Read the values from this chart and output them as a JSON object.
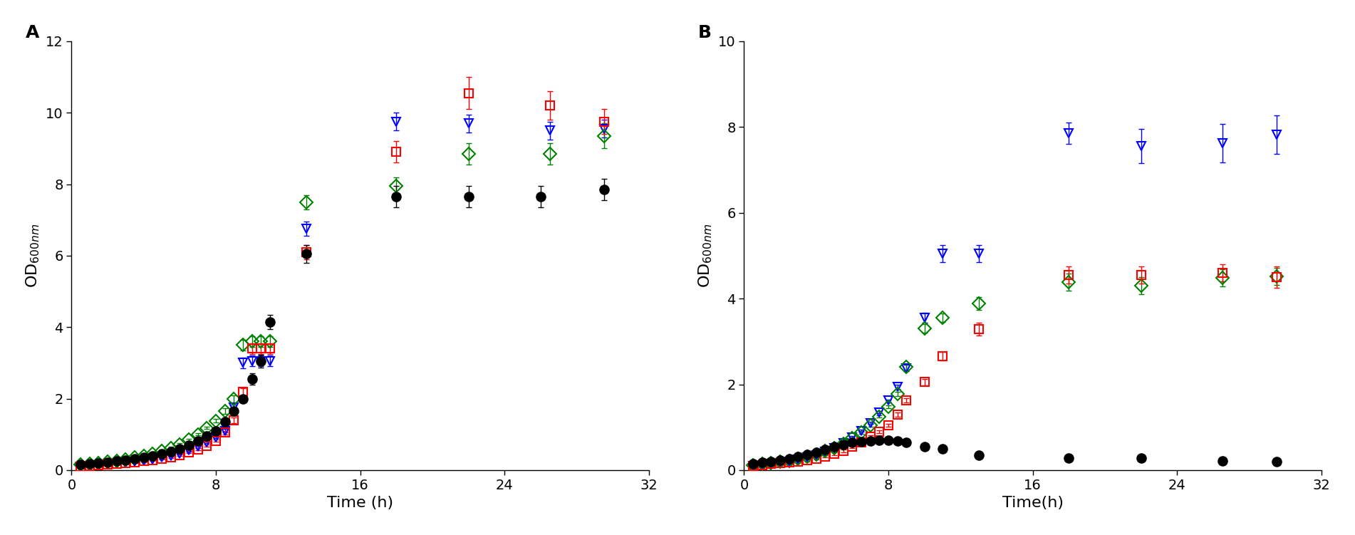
{
  "panel_A": {
    "black_circle": {
      "x": [
        0.5,
        1.0,
        1.5,
        2.0,
        2.5,
        3.0,
        3.5,
        4.0,
        4.5,
        5.0,
        5.5,
        6.0,
        6.5,
        7.0,
        7.5,
        8.0,
        8.5,
        9.0,
        9.5,
        10.0,
        10.5,
        11.0,
        13.0,
        18.0,
        22.0,
        26.0,
        29.5
      ],
      "y": [
        0.15,
        0.18,
        0.2,
        0.22,
        0.25,
        0.28,
        0.32,
        0.36,
        0.4,
        0.46,
        0.52,
        0.6,
        0.7,
        0.82,
        0.95,
        1.1,
        1.35,
        1.65,
        2.0,
        2.55,
        3.05,
        4.15,
        6.05,
        7.65,
        7.65,
        7.65,
        7.85
      ],
      "yerr": [
        0.03,
        0.03,
        0.03,
        0.03,
        0.03,
        0.03,
        0.03,
        0.03,
        0.03,
        0.03,
        0.03,
        0.03,
        0.03,
        0.03,
        0.03,
        0.05,
        0.05,
        0.08,
        0.1,
        0.15,
        0.18,
        0.2,
        0.25,
        0.3,
        0.3,
        0.3,
        0.3
      ]
    },
    "red_square": {
      "x": [
        0.5,
        1.0,
        1.5,
        2.0,
        2.5,
        3.0,
        3.5,
        4.0,
        4.5,
        5.0,
        5.5,
        6.0,
        6.5,
        7.0,
        7.5,
        8.0,
        8.5,
        9.0,
        9.5,
        10.0,
        10.5,
        11.0,
        13.0,
        18.0,
        22.0,
        26.5,
        29.5
      ],
      "y": [
        0.1,
        0.12,
        0.14,
        0.16,
        0.18,
        0.2,
        0.22,
        0.25,
        0.28,
        0.32,
        0.36,
        0.42,
        0.5,
        0.58,
        0.68,
        0.82,
        1.05,
        1.4,
        2.2,
        3.4,
        3.4,
        3.4,
        6.1,
        8.9,
        10.55,
        10.2,
        9.75
      ],
      "yerr": [
        0.03,
        0.03,
        0.03,
        0.03,
        0.03,
        0.03,
        0.03,
        0.03,
        0.03,
        0.03,
        0.03,
        0.03,
        0.03,
        0.03,
        0.03,
        0.03,
        0.05,
        0.08,
        0.1,
        0.15,
        0.15,
        0.15,
        0.2,
        0.3,
        0.45,
        0.4,
        0.35
      ]
    },
    "green_diamond": {
      "x": [
        0.5,
        1.0,
        1.5,
        2.0,
        2.5,
        3.0,
        3.5,
        4.0,
        4.5,
        5.0,
        5.5,
        6.0,
        6.5,
        7.0,
        7.5,
        8.0,
        8.5,
        9.0,
        9.5,
        10.0,
        10.5,
        11.0,
        13.0,
        18.0,
        22.0,
        26.5,
        29.5
      ],
      "y": [
        0.15,
        0.17,
        0.2,
        0.23,
        0.26,
        0.3,
        0.35,
        0.4,
        0.46,
        0.54,
        0.62,
        0.72,
        0.85,
        1.0,
        1.18,
        1.38,
        1.65,
        2.0,
        3.5,
        3.6,
        3.6,
        3.6,
        7.5,
        7.95,
        8.85,
        8.85,
        9.35
      ],
      "yerr": [
        0.03,
        0.03,
        0.03,
        0.03,
        0.03,
        0.03,
        0.03,
        0.03,
        0.03,
        0.03,
        0.03,
        0.03,
        0.03,
        0.03,
        0.03,
        0.05,
        0.08,
        0.1,
        0.15,
        0.15,
        0.15,
        0.15,
        0.2,
        0.25,
        0.3,
        0.3,
        0.35
      ]
    },
    "blue_triangle": {
      "x": [
        0.5,
        1.0,
        1.5,
        2.0,
        2.5,
        3.0,
        3.5,
        4.0,
        4.5,
        5.0,
        5.5,
        6.0,
        6.5,
        7.0,
        7.5,
        8.0,
        8.5,
        9.0,
        9.5,
        10.0,
        10.5,
        11.0,
        13.0,
        18.0,
        22.0,
        26.5,
        29.5
      ],
      "y": [
        0.1,
        0.12,
        0.14,
        0.16,
        0.18,
        0.2,
        0.23,
        0.26,
        0.3,
        0.35,
        0.4,
        0.46,
        0.55,
        0.65,
        0.78,
        0.92,
        1.1,
        1.75,
        3.0,
        3.05,
        3.05,
        3.05,
        6.75,
        9.75,
        9.7,
        9.5,
        9.55
      ],
      "yerr": [
        0.03,
        0.03,
        0.03,
        0.03,
        0.03,
        0.03,
        0.03,
        0.03,
        0.03,
        0.03,
        0.03,
        0.03,
        0.03,
        0.03,
        0.03,
        0.03,
        0.05,
        0.08,
        0.15,
        0.15,
        0.15,
        0.15,
        0.2,
        0.25,
        0.25,
        0.25,
        0.25
      ]
    }
  },
  "panel_B": {
    "black_circle": {
      "x": [
        0.5,
        1.0,
        1.5,
        2.0,
        2.5,
        3.0,
        3.5,
        4.0,
        4.5,
        5.0,
        5.5,
        6.0,
        6.5,
        7.0,
        7.5,
        8.0,
        8.5,
        9.0,
        10.0,
        11.0,
        13.0,
        18.0,
        22.0,
        26.5,
        29.5
      ],
      "y": [
        0.15,
        0.18,
        0.2,
        0.23,
        0.27,
        0.31,
        0.36,
        0.42,
        0.48,
        0.55,
        0.6,
        0.64,
        0.67,
        0.68,
        0.7,
        0.7,
        0.68,
        0.65,
        0.55,
        0.5,
        0.35,
        0.28,
        0.28,
        0.22,
        0.2
      ],
      "yerr": [
        0.03,
        0.03,
        0.03,
        0.03,
        0.03,
        0.03,
        0.03,
        0.03,
        0.03,
        0.03,
        0.03,
        0.03,
        0.03,
        0.03,
        0.03,
        0.03,
        0.03,
        0.03,
        0.03,
        0.03,
        0.03,
        0.03,
        0.03,
        0.03,
        0.03
      ]
    },
    "red_square": {
      "x": [
        0.5,
        1.0,
        1.5,
        2.0,
        2.5,
        3.0,
        3.5,
        4.0,
        4.5,
        5.0,
        5.5,
        6.0,
        6.5,
        7.0,
        7.5,
        8.0,
        8.5,
        9.0,
        10.0,
        11.0,
        13.0,
        18.0,
        22.0,
        26.5,
        29.5
      ],
      "y": [
        0.1,
        0.12,
        0.14,
        0.16,
        0.18,
        0.2,
        0.23,
        0.27,
        0.32,
        0.38,
        0.45,
        0.55,
        0.65,
        0.78,
        0.9,
        1.05,
        1.3,
        1.62,
        2.05,
        2.65,
        3.28,
        4.55,
        4.55,
        4.6,
        4.5
      ],
      "yerr": [
        0.03,
        0.03,
        0.03,
        0.03,
        0.03,
        0.03,
        0.03,
        0.03,
        0.03,
        0.03,
        0.03,
        0.03,
        0.03,
        0.03,
        0.03,
        0.03,
        0.05,
        0.05,
        0.08,
        0.1,
        0.15,
        0.2,
        0.2,
        0.2,
        0.25
      ]
    },
    "green_diamond": {
      "x": [
        0.5,
        1.0,
        1.5,
        2.0,
        2.5,
        3.0,
        3.5,
        4.0,
        4.5,
        5.0,
        5.5,
        6.0,
        6.5,
        7.0,
        7.5,
        8.0,
        8.5,
        9.0,
        10.0,
        11.0,
        13.0,
        18.0,
        22.0,
        26.5,
        29.5
      ],
      "y": [
        0.12,
        0.14,
        0.16,
        0.19,
        0.22,
        0.26,
        0.31,
        0.37,
        0.44,
        0.52,
        0.62,
        0.74,
        0.88,
        1.05,
        1.25,
        1.48,
        1.78,
        2.4,
        3.3,
        3.55,
        3.88,
        4.38,
        4.3,
        4.48,
        4.52
      ],
      "yerr": [
        0.03,
        0.03,
        0.03,
        0.03,
        0.03,
        0.03,
        0.03,
        0.03,
        0.03,
        0.03,
        0.03,
        0.03,
        0.03,
        0.03,
        0.03,
        0.03,
        0.05,
        0.08,
        0.1,
        0.1,
        0.15,
        0.2,
        0.2,
        0.2,
        0.2
      ]
    },
    "blue_triangle": {
      "x": [
        0.5,
        1.0,
        1.5,
        2.0,
        2.5,
        3.0,
        3.5,
        4.0,
        4.5,
        5.0,
        5.5,
        6.0,
        6.5,
        7.0,
        7.5,
        8.0,
        8.5,
        9.0,
        10.0,
        11.0,
        13.0,
        18.0,
        22.0,
        26.5,
        29.5
      ],
      "y": [
        0.1,
        0.12,
        0.14,
        0.17,
        0.2,
        0.24,
        0.29,
        0.35,
        0.43,
        0.52,
        0.63,
        0.76,
        0.92,
        1.1,
        1.35,
        1.62,
        1.95,
        2.38,
        3.55,
        5.05,
        5.05,
        7.85,
        7.55,
        7.62,
        7.82
      ],
      "yerr": [
        0.03,
        0.03,
        0.03,
        0.03,
        0.03,
        0.03,
        0.03,
        0.03,
        0.03,
        0.03,
        0.03,
        0.03,
        0.03,
        0.03,
        0.03,
        0.03,
        0.05,
        0.08,
        0.12,
        0.2,
        0.2,
        0.25,
        0.4,
        0.45,
        0.45
      ]
    }
  },
  "colors": {
    "black": "#000000",
    "red": "#FF0000",
    "green": "#008000",
    "blue": "#0000FF"
  },
  "panel_A_ylim": [
    0,
    12
  ],
  "panel_B_ylim": [
    0,
    10
  ],
  "xlim": [
    0,
    32
  ],
  "xticks": [
    0,
    8,
    16,
    24,
    32
  ],
  "panel_A_yticks": [
    0,
    2,
    4,
    6,
    8,
    10,
    12
  ],
  "panel_B_yticks": [
    0,
    2,
    4,
    6,
    8,
    10
  ],
  "xlabel_A": "Time (h)",
  "xlabel_B": "Time(h)",
  "ylabel": "OD$_{600nm}$",
  "label_A": "A",
  "label_B": "B",
  "background_color": "#ffffff",
  "marker_size": 9,
  "cap_size": 3,
  "line_width": 1.0,
  "tick_labelsize": 14,
  "axis_labelsize": 16,
  "panel_label_size": 18
}
